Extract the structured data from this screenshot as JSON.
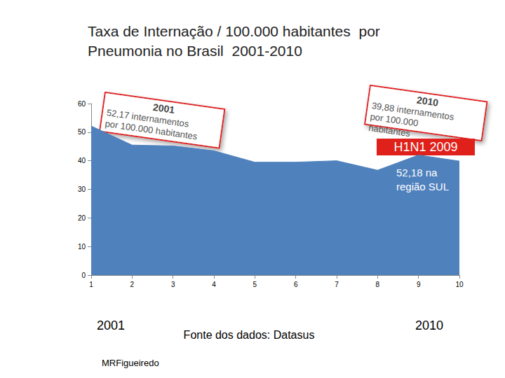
{
  "chart_data": {
    "type": "area",
    "title": "Taxa de Internação / 100.000 habitantes  por Pneumonia no Brasil  2001-2010",
    "categories": [
      "1",
      "2",
      "3",
      "4",
      "5",
      "6",
      "7",
      "8",
      "9",
      "10"
    ],
    "values": [
      52.17,
      45.5,
      45.2,
      43.5,
      39.5,
      39.5,
      40,
      36.7,
      42,
      39.88
    ],
    "color": "#4f81bd",
    "ylim": [
      0,
      60
    ],
    "yticks": [
      0,
      10,
      20,
      30,
      40,
      50,
      60
    ],
    "grid": false,
    "annotations": [
      {
        "heading": "2001",
        "text": "52,17 internamentos por 100.000 habitantes"
      },
      {
        "heading": "2010",
        "text": "39,88 internamentos por 100.000 habitantes"
      },
      {
        "text": "H1N1 2009"
      },
      {
        "text": "52,18 na região SUL"
      },
      {
        "text": "2001"
      },
      {
        "text": "Fonte dos dados: Datasus"
      },
      {
        "text": "2010"
      },
      {
        "text": "MRFigueiredo"
      }
    ]
  }
}
